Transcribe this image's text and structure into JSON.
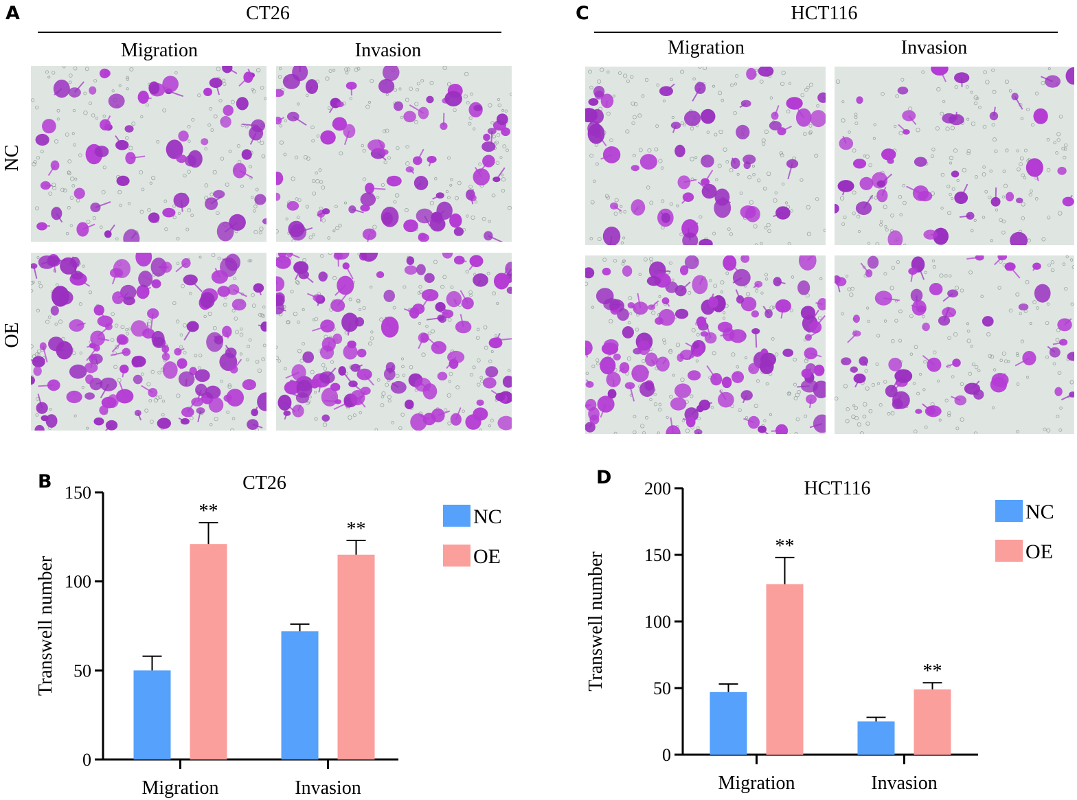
{
  "panels": {
    "A": {
      "letter": "A",
      "title": "CT26",
      "columns": [
        "Migration",
        "Invasion"
      ],
      "rows": [
        "NC",
        "OE"
      ],
      "density": [
        [
          0.35,
          0.45
        ],
        [
          0.85,
          0.8
        ]
      ]
    },
    "C": {
      "letter": "C",
      "title": "HCT116",
      "columns": [
        "Migration",
        "Invasion"
      ],
      "rows": [],
      "density": [
        [
          0.3,
          0.2
        ],
        [
          0.85,
          0.3
        ]
      ]
    }
  },
  "colors": {
    "nc": "#55a1fb",
    "oe": "#fa9f9c",
    "stain": "#b43bd4",
    "background": "#dfe6e2"
  },
  "chart_data": [
    {
      "letter": "B",
      "type": "bar",
      "title": "CT26",
      "ylabel": "Transwell number",
      "xlabel": "",
      "categories": [
        "Migration",
        "Invasion"
      ],
      "ylim": [
        0,
        150
      ],
      "yticks": [
        0,
        50,
        100,
        150
      ],
      "series": [
        {
          "name": "NC",
          "values": [
            50,
            72
          ],
          "errors": [
            8,
            4
          ]
        },
        {
          "name": "OE",
          "values": [
            121,
            115
          ],
          "errors": [
            12,
            8
          ]
        }
      ],
      "annotations": [
        {
          "category": 0,
          "series": 1,
          "text": "**"
        },
        {
          "category": 1,
          "series": 1,
          "text": "**"
        }
      ],
      "legend": "right"
    },
    {
      "letter": "D",
      "type": "bar",
      "title": "HCT116",
      "ylabel": "Transwell number",
      "xlabel": "",
      "categories": [
        "Migration",
        "Invasion"
      ],
      "ylim": [
        0,
        200
      ],
      "yticks": [
        0,
        50,
        100,
        150,
        200
      ],
      "series": [
        {
          "name": "NC",
          "values": [
            47,
            25
          ],
          "errors": [
            6,
            3
          ]
        },
        {
          "name": "OE",
          "values": [
            128,
            49
          ],
          "errors": [
            20,
            5
          ]
        }
      ],
      "annotations": [
        {
          "category": 0,
          "series": 1,
          "text": "**"
        },
        {
          "category": 1,
          "series": 1,
          "text": "**"
        }
      ],
      "legend": "right"
    }
  ]
}
